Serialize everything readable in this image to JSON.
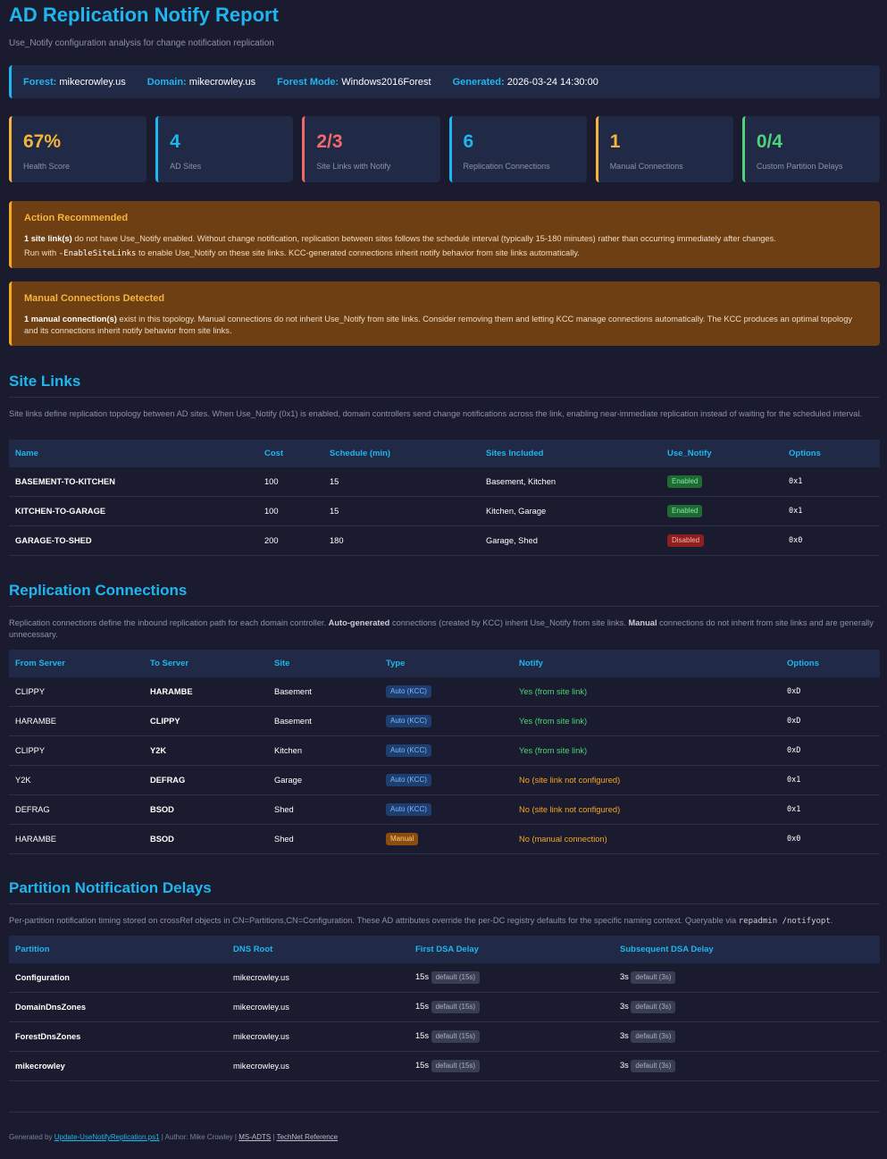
{
  "header": {
    "title": "AD Replication Notify Report",
    "subtitle": "Use_Notify configuration analysis for change notification replication"
  },
  "info": {
    "forest_label": "Forest:",
    "forest": "mikecrowley.us",
    "domain_label": "Domain:",
    "domain": "mikecrowley.us",
    "mode_label": "Forest Mode:",
    "mode": "Windows2016Forest",
    "generated_label": "Generated:",
    "generated": "2026-03-24 14:30:00"
  },
  "cards": [
    {
      "value": "67%",
      "label": "Health Score",
      "color": "#f5b43c"
    },
    {
      "value": "4",
      "label": "AD Sites",
      "color": "#1fb6f0"
    },
    {
      "value": "2/3",
      "label": "Site Links with Notify",
      "color": "#f06a6a"
    },
    {
      "value": "6",
      "label": "Replication Connections",
      "color": "#1fb6f0"
    },
    {
      "value": "1",
      "label": "Manual Connections",
      "color": "#f5b43c"
    },
    {
      "value": "0/4",
      "label": "Custom Partition Delays",
      "color": "#4fd37a"
    }
  ],
  "alerts": {
    "action": {
      "title": "Action Recommended",
      "p1_bold": "1 site link(s)",
      "p1_rest": " do not have Use_Notify enabled. Without change notification, replication between sites follows the schedule interval (typically 15-180 minutes) rather than occurring immediately after changes.",
      "p2_pre": "Run with ",
      "p2_code": "-EnableSiteLinks",
      "p2_post": " to enable Use_Notify on these site links. KCC-generated connections inherit notify behavior from site links automatically."
    },
    "manual": {
      "title": "Manual Connections Detected",
      "p1_bold": "1 manual connection(s)",
      "p1_rest": " exist in this topology. Manual connections do not inherit Use_Notify from site links. Consider removing them and letting KCC manage connections automatically. The KCC produces an optimal topology and its connections inherit notify behavior from site links."
    }
  },
  "site_links": {
    "title": "Site Links",
    "desc": "Site links define replication topology between AD sites. When Use_Notify (0x1) is enabled, domain controllers send change notifications across the link, enabling near-immediate replication instead of waiting for the scheduled interval.",
    "headers": [
      "Name",
      "Cost",
      "Schedule (min)",
      "Sites Included",
      "Use_Notify",
      "Options"
    ],
    "rows": [
      {
        "name": "BASEMENT-TO-KITCHEN",
        "cost": "100",
        "schedule": "15",
        "sites": "Basement, Kitchen",
        "notify": "Enabled",
        "options": "0x1"
      },
      {
        "name": "KITCHEN-TO-GARAGE",
        "cost": "100",
        "schedule": "15",
        "sites": "Kitchen, Garage",
        "notify": "Enabled",
        "options": "0x1"
      },
      {
        "name": "GARAGE-TO-SHED",
        "cost": "200",
        "schedule": "180",
        "sites": "Garage, Shed",
        "notify": "Disabled",
        "options": "0x0"
      }
    ]
  },
  "connections": {
    "title": "Replication Connections",
    "desc_1": "Replication connections define the inbound replication path for each domain controller. ",
    "desc_b1": "Auto-generated",
    "desc_2": " connections (created by KCC) inherit Use_Notify from site links. ",
    "desc_b2": "Manual",
    "desc_3": " connections do not inherit from site links and are generally unnecessary.",
    "headers": [
      "From Server",
      "To Server",
      "Site",
      "Type",
      "Notify",
      "Options"
    ],
    "rows": [
      {
        "from": "CLIPPY",
        "to": "HARAMBE",
        "site": "Basement",
        "type": "Auto (KCC)",
        "notify": "Yes (from site link)",
        "options": "0xD"
      },
      {
        "from": "HARAMBE",
        "to": "CLIPPY",
        "site": "Basement",
        "type": "Auto (KCC)",
        "notify": "Yes (from site link)",
        "options": "0xD"
      },
      {
        "from": "CLIPPY",
        "to": "Y2K",
        "site": "Kitchen",
        "type": "Auto (KCC)",
        "notify": "Yes (from site link)",
        "options": "0xD"
      },
      {
        "from": "Y2K",
        "to": "DEFRAG",
        "site": "Garage",
        "type": "Auto (KCC)",
        "notify": "No (site link not configured)",
        "options": "0x1"
      },
      {
        "from": "DEFRAG",
        "to": "BSOD",
        "site": "Shed",
        "type": "Auto (KCC)",
        "notify": "No (site link not configured)",
        "options": "0x1"
      },
      {
        "from": "HARAMBE",
        "to": "BSOD",
        "site": "Shed",
        "type": "Manual",
        "notify": "No (manual connection)",
        "options": "0x0"
      }
    ]
  },
  "partitions": {
    "title": "Partition Notification Delays",
    "desc_1": "Per-partition notification timing stored on crossRef objects in CN=Partitions,CN=Configuration. These AD attributes override the per-DC registry defaults for the specific naming context. Queryable via ",
    "desc_code": "repadmin /notifyopt",
    "desc_2": ".",
    "headers": [
      "Partition",
      "DNS Root",
      "First DSA Delay",
      "Subsequent DSA Delay"
    ],
    "rows": [
      {
        "partition": "Configuration",
        "dns": "mikecrowley.us",
        "first": "15s",
        "first_badge": "default (15s)",
        "subseq": "3s",
        "subseq_badge": "default (3s)"
      },
      {
        "partition": "DomainDnsZones",
        "dns": "mikecrowley.us",
        "first": "15s",
        "first_badge": "default (15s)",
        "subseq": "3s",
        "subseq_badge": "default (3s)"
      },
      {
        "partition": "ForestDnsZones",
        "dns": "mikecrowley.us",
        "first": "15s",
        "first_badge": "default (15s)",
        "subseq": "3s",
        "subseq_badge": "default (3s)"
      },
      {
        "partition": "mikecrowley",
        "dns": "mikecrowley.us",
        "first": "15s",
        "first_badge": "default (15s)",
        "subseq": "3s",
        "subseq_badge": "default (3s)"
      }
    ]
  },
  "footer": {
    "generated_by": "Generated by",
    "script_link": "Update-UseNotifyReplication.ps1",
    "author": "| Author: Mike Crowley |",
    "msadts": "MS-ADTS",
    "sep": "|",
    "technet": "TechNet Reference"
  }
}
